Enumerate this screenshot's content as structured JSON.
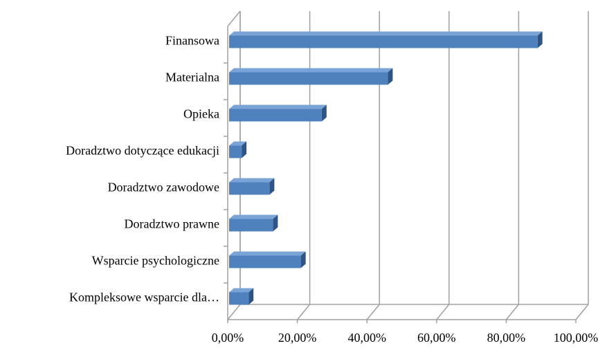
{
  "chart_data": {
    "type": "bar3d_horizontal",
    "categories": [
      "Finansowa",
      "Materialna",
      "Opieka",
      "Doradztwo dotyczące edukacji",
      "Doradztwo zawodowe",
      "Doradztwo prawne",
      "Wsparcie psychologiczne",
      "Kompleksowe wsparcie dla…"
    ],
    "values": [
      89,
      46,
      27,
      4,
      12,
      13,
      21,
      6
    ],
    "color": "#4f81bd",
    "xlim": [
      0,
      100
    ],
    "xticks": [
      {
        "value": 0,
        "label": "0,00%"
      },
      {
        "value": 20,
        "label": "20,00%"
      },
      {
        "value": 40,
        "label": "40,00%"
      },
      {
        "value": 60,
        "label": "60,00%"
      },
      {
        "value": 80,
        "label": "80,00%"
      },
      {
        "value": 100,
        "label": "100,00%"
      }
    ],
    "grid": true
  }
}
